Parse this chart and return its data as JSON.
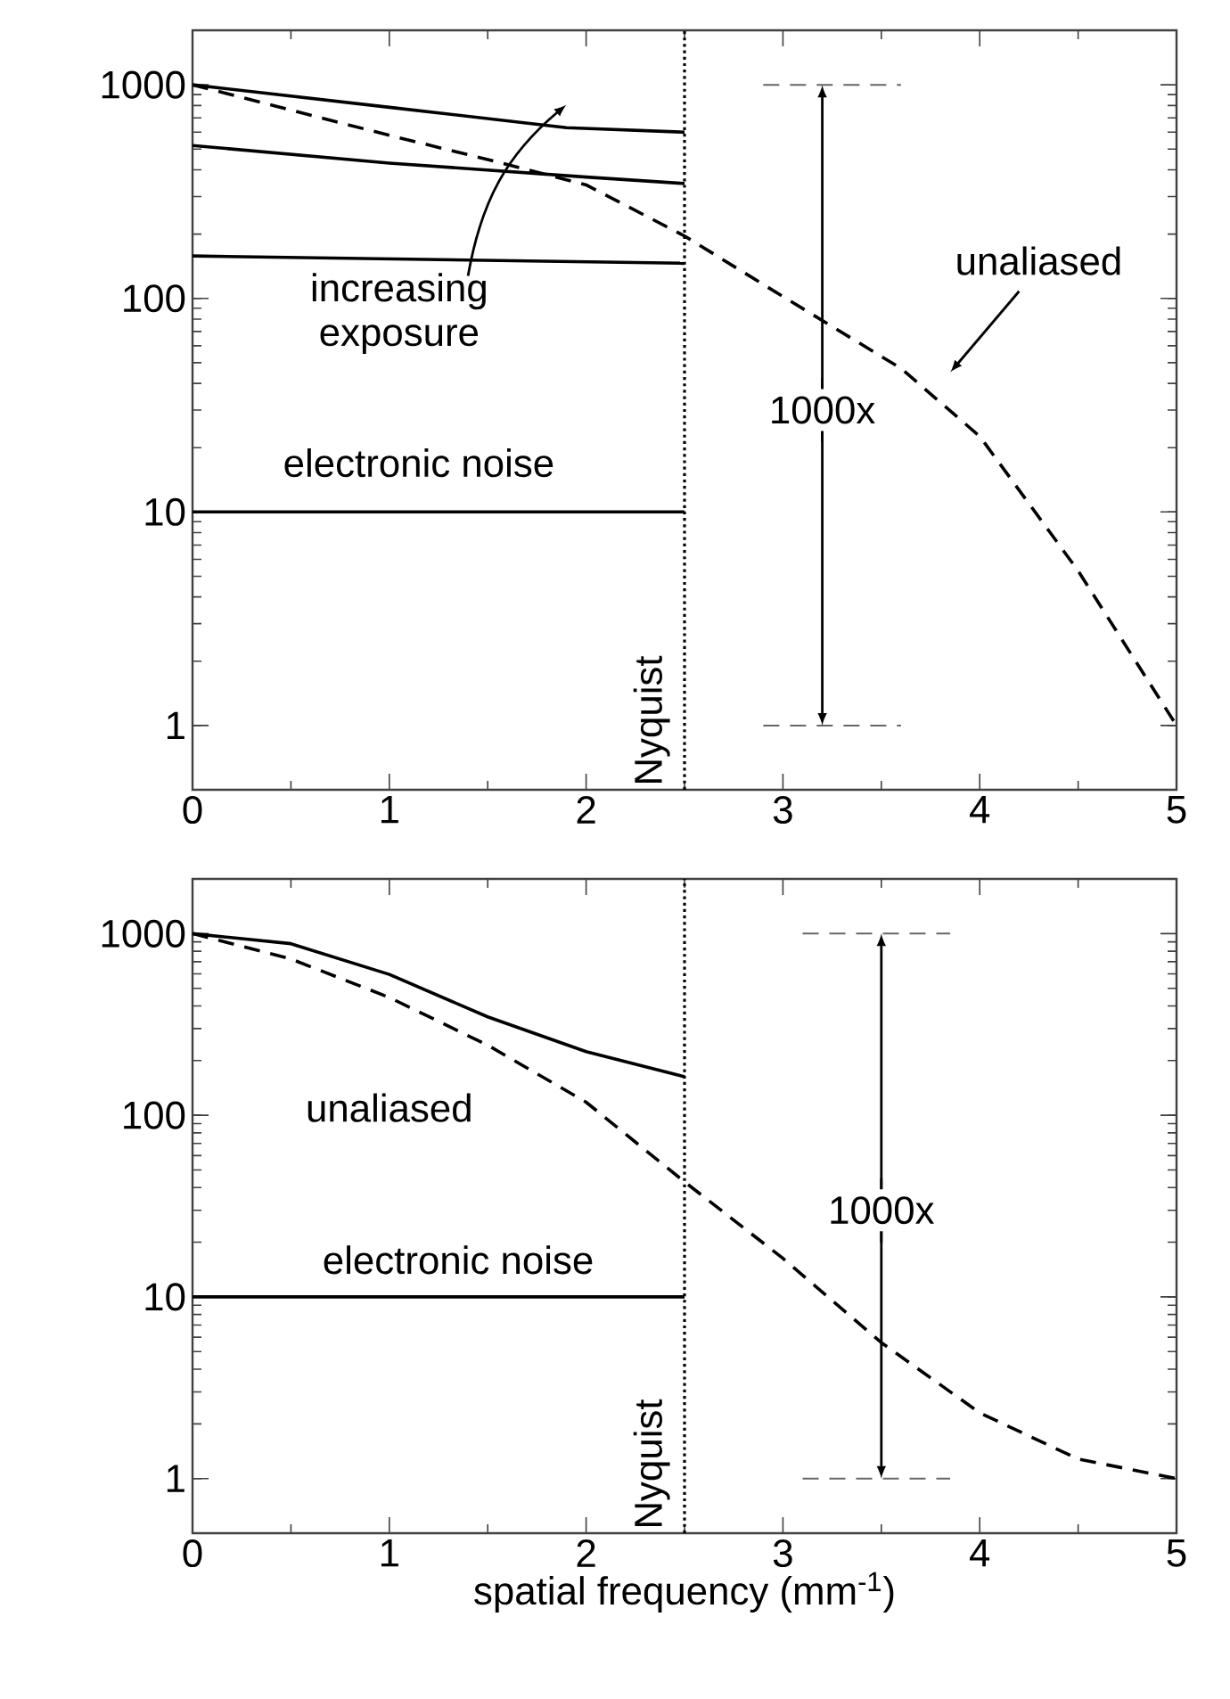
{
  "chart_data": [
    {
      "type": "line",
      "xlim": [
        0,
        5
      ],
      "ylim": [
        0.5,
        1800
      ],
      "xticks": [
        0,
        1,
        2,
        3,
        4,
        5
      ],
      "yticks": [
        1,
        10,
        100,
        1000
      ],
      "log": "y",
      "series": [
        {
          "color": "#000000",
          "line_style": "solid",
          "x": [
            0,
            1,
            1.9,
            2.5
          ],
          "values": [
            1000,
            785,
            630,
            600
          ]
        },
        {
          "color": "#000000",
          "line_style": "solid",
          "x": [
            0,
            1,
            2,
            2.5
          ],
          "values": [
            520,
            430,
            370,
            345
          ]
        },
        {
          "color": "#000000",
          "line_style": "solid",
          "x": [
            0,
            2.5
          ],
          "values": [
            158,
            146
          ]
        },
        {
          "color": "#000000",
          "line_style": "solid",
          "x": [
            0,
            2.5
          ],
          "values": [
            10,
            10
          ]
        },
        {
          "color": "#000000",
          "line_style": "dashed",
          "x": [
            0,
            0.5,
            1,
            1.5,
            2,
            2.5,
            3,
            3.6,
            4,
            4.5,
            5
          ],
          "values": [
            1000,
            762,
            580,
            447,
            340,
            196,
            102,
            47,
            22.6,
            5.3,
            1
          ]
        },
        {
          "color": "#666666",
          "line_style": "dashed",
          "x": [
            2.9,
            3.6
          ],
          "values": [
            1000,
            1000
          ]
        },
        {
          "color": "#666666",
          "line_style": "dashed",
          "x": [
            2.9,
            3.6
          ],
          "values": [
            1,
            1
          ]
        }
      ],
      "ref_lines": [
        {
          "axis": "x",
          "value": 2.5,
          "label": "Nyquist",
          "line_style": "dotted"
        }
      ],
      "annotations": [
        "increasing exposure",
        "electronic noise",
        "1000x",
        "unaliased"
      ]
    },
    {
      "type": "line",
      "xlim": [
        0,
        5
      ],
      "ylim": [
        0.5,
        2000
      ],
      "xticks": [
        0,
        1,
        2,
        3,
        4,
        5
      ],
      "yticks": [
        1,
        10,
        100,
        1000
      ],
      "log": "y",
      "xlabel": "spatial frequency (mm$^{-1}$)",
      "series": [
        {
          "color": "#000000",
          "line_style": "solid",
          "x": [
            0,
            0.5,
            1,
            1.5,
            2,
            2.5
          ],
          "values": [
            1000,
            880,
            596,
            348,
            224,
            163
          ]
        },
        {
          "color": "#000000",
          "line_style": "solid",
          "x": [
            0,
            2.5
          ],
          "values": [
            10,
            10
          ]
        },
        {
          "color": "#000000",
          "line_style": "dashed",
          "x": [
            0,
            0.5,
            1,
            1.5,
            2,
            2.5,
            3,
            3.5,
            4,
            4.5,
            5
          ],
          "values": [
            1000,
            725,
            445,
            243,
            118,
            43,
            16.3,
            5.6,
            2.3,
            1.28,
            1
          ]
        },
        {
          "color": "#666666",
          "line_style": "dashed",
          "x": [
            3.1,
            3.85
          ],
          "values": [
            1000,
            1000
          ]
        },
        {
          "color": "#666666",
          "line_style": "dashed",
          "x": [
            3.1,
            3.85
          ],
          "values": [
            1,
            1
          ]
        }
      ],
      "ref_lines": [
        {
          "axis": "x",
          "value": 2.5,
          "label": "Nyquist",
          "line_style": "dotted"
        }
      ],
      "annotations": [
        "unaliased",
        "electronic noise",
        "1000x"
      ]
    }
  ]
}
